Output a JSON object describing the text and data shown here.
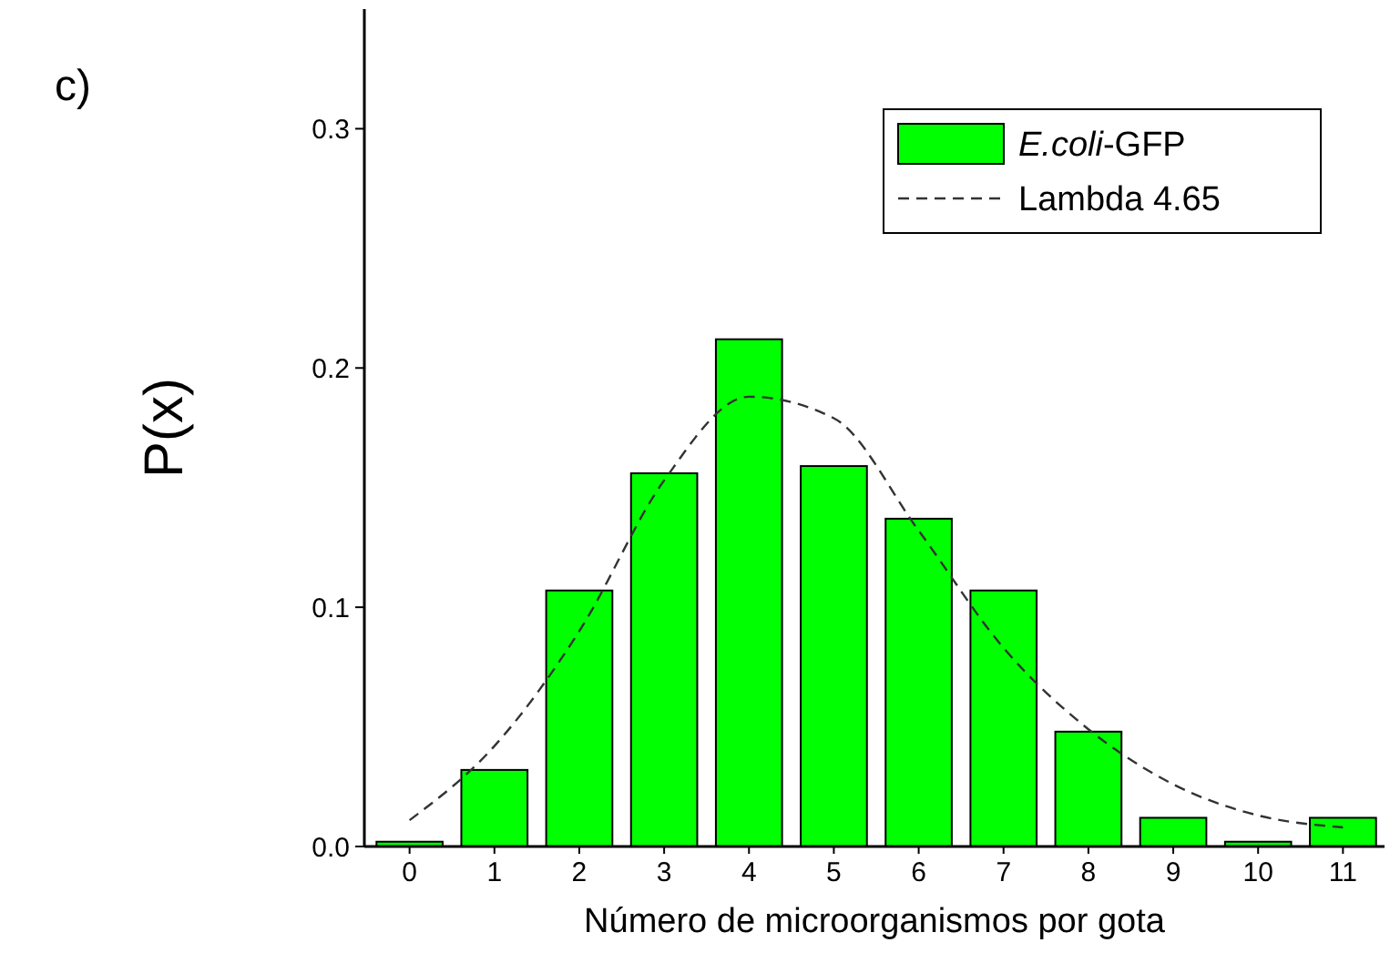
{
  "chart_data": {
    "type": "bar",
    "title": "c)",
    "xlabel": "Número de microorganismos por gota",
    "ylabel": "P(x)",
    "categories": [
      "0",
      "1",
      "2",
      "3",
      "4",
      "5",
      "6",
      "7",
      "8",
      "9",
      "10",
      "11"
    ],
    "series": [
      {
        "name": "E.coli-GFP",
        "color": "#00ff00",
        "values": [
          0.002,
          0.032,
          0.107,
          0.156,
          0.212,
          0.159,
          0.137,
          0.107,
          0.048,
          0.012,
          0.002,
          0.012
        ]
      },
      {
        "name": "Lambda 4.65",
        "type": "line",
        "color": "#333333",
        "line_style": "dashed",
        "values": [
          0.011,
          0.042,
          0.09,
          0.153,
          0.188,
          0.179,
          0.132,
          0.083,
          0.049,
          0.026,
          0.013,
          0.008
        ]
      }
    ],
    "ylim": [
      0,
      0.35
    ],
    "yticks": [
      {
        "value": 0,
        "label": "0.0"
      },
      0.1,
      0.2,
      0.3
    ],
    "grid": false,
    "legend": "top right"
  }
}
